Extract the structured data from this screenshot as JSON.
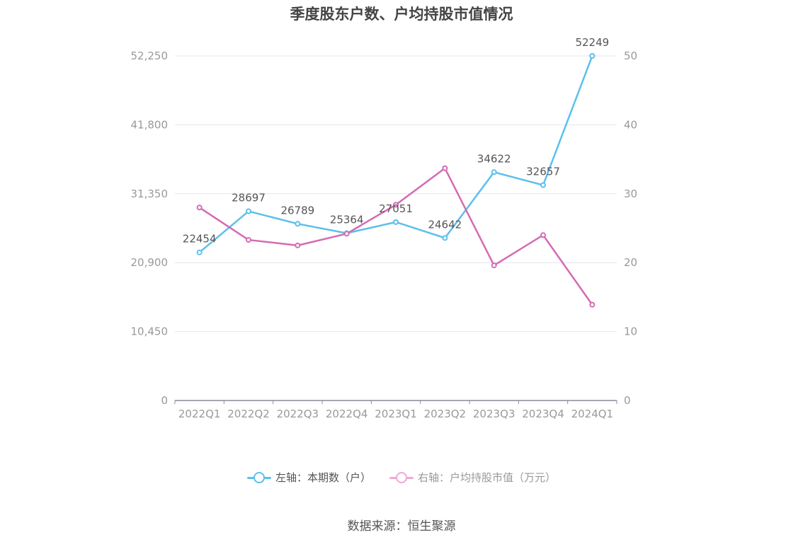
{
  "chart_data": {
    "type": "line",
    "title": "季度股东户数、户均持股市值情况",
    "categories": [
      "2022Q1",
      "2022Q2",
      "2022Q3",
      "2022Q4",
      "2023Q1",
      "2023Q2",
      "2023Q3",
      "2023Q4",
      "2024Q1"
    ],
    "y_left": {
      "ticks": [
        "0",
        "10,450",
        "20,900",
        "31,350",
        "41,800",
        "52,250"
      ],
      "range": [
        0,
        52250
      ]
    },
    "y_right": {
      "ticks": [
        "0",
        "10",
        "20",
        "30",
        "40",
        "50"
      ],
      "range": [
        0,
        50
      ]
    },
    "grid": true,
    "legend_position": "bottom",
    "series": [
      {
        "name": "左轴：本期数（户）",
        "axis": "left",
        "color": "#5bc0eb",
        "values": [
          22454,
          28697,
          26789,
          25364,
          27051,
          24642,
          34622,
          32657,
          52249
        ],
        "labels": [
          "22454",
          "28697",
          "26789",
          "25364",
          "27051",
          "24642",
          "34622",
          "32657",
          "52249"
        ]
      },
      {
        "name": "右轴：户均持股市值（万元）",
        "axis": "right",
        "color": "#d46bb4",
        "values": [
          28.0,
          23.3,
          22.5,
          24.2,
          28.4,
          33.7,
          19.6,
          24.0,
          13.9
        ]
      }
    ],
    "legend_colors": [
      "#5bc0eb",
      "#f0a8d6"
    ]
  },
  "source": "数据来源：恒生聚源"
}
